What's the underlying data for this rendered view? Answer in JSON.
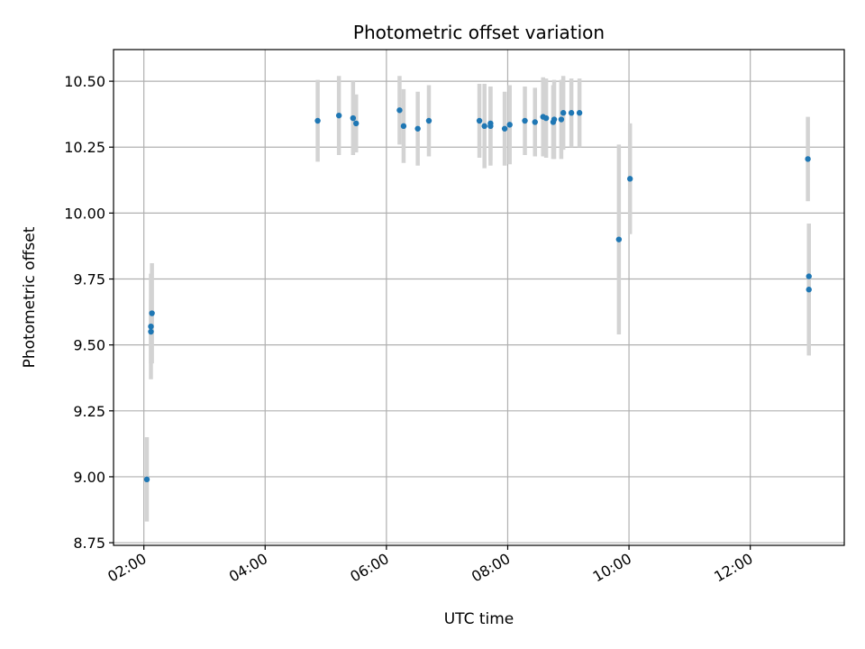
{
  "chart_data": {
    "type": "scatter",
    "title": "Photometric offset variation",
    "xlabel": "UTC time",
    "ylabel": "Photometric offset",
    "grid": true,
    "x_ticks": [
      "02:00",
      "04:00",
      "06:00",
      "08:00",
      "10:00",
      "12:00"
    ],
    "x_tick_hours": [
      2,
      4,
      6,
      8,
      10,
      12
    ],
    "xlim": [
      "01:30",
      "13:33"
    ],
    "xlim_hours": [
      1.5,
      13.55
    ],
    "ylim": [
      8.74,
      10.62
    ],
    "y_ticks": [
      "8.75",
      "9.00",
      "9.25",
      "9.50",
      "9.75",
      "10.00",
      "10.25",
      "10.50"
    ],
    "y_tick_values": [
      8.75,
      9.0,
      9.25,
      9.5,
      9.75,
      10.0,
      10.25,
      10.5
    ],
    "colors": {
      "marker": "#1f77b4",
      "errorbar": "#d3d3d3",
      "grid": "#b0b0b0"
    },
    "points": [
      {
        "time": "02:03",
        "y": 8.99,
        "err": 0.16
      },
      {
        "time": "02:07",
        "y": 9.55,
        "err": 0.12
      },
      {
        "time": "02:07",
        "y": 9.57,
        "err": 0.2
      },
      {
        "time": "02:08",
        "y": 9.62,
        "err": 0.19
      },
      {
        "time": "04:52",
        "y": 10.35,
        "err": 0.155
      },
      {
        "time": "05:13",
        "y": 10.37,
        "err": 0.15
      },
      {
        "time": "05:27",
        "y": 10.36,
        "err": 0.14
      },
      {
        "time": "05:30",
        "y": 10.34,
        "err": 0.11
      },
      {
        "time": "06:13",
        "y": 10.39,
        "err": 0.13
      },
      {
        "time": "06:17",
        "y": 10.33,
        "err": 0.14
      },
      {
        "time": "06:31",
        "y": 10.32,
        "err": 0.14
      },
      {
        "time": "06:42",
        "y": 10.35,
        "err": 0.135
      },
      {
        "time": "07:32",
        "y": 10.35,
        "err": 0.14
      },
      {
        "time": "07:37",
        "y": 10.33,
        "err": 0.16
      },
      {
        "time": "07:43",
        "y": 10.33,
        "err": 0.15
      },
      {
        "time": "07:43",
        "y": 10.34,
        "err": 0.14
      },
      {
        "time": "07:57",
        "y": 10.32,
        "err": 0.14
      },
      {
        "time": "08:02",
        "y": 10.335,
        "err": 0.15
      },
      {
        "time": "08:17",
        "y": 10.35,
        "err": 0.13
      },
      {
        "time": "08:27",
        "y": 10.345,
        "err": 0.13
      },
      {
        "time": "08:35",
        "y": 10.365,
        "err": 0.15
      },
      {
        "time": "08:38",
        "y": 10.36,
        "err": 0.15
      },
      {
        "time": "08:45",
        "y": 10.345,
        "err": 0.14
      },
      {
        "time": "08:46",
        "y": 10.355,
        "err": 0.15
      },
      {
        "time": "08:53",
        "y": 10.355,
        "err": 0.15
      },
      {
        "time": "08:55",
        "y": 10.38,
        "err": 0.14
      },
      {
        "time": "09:03",
        "y": 10.38,
        "err": 0.13
      },
      {
        "time": "09:11",
        "y": 10.38,
        "err": 0.13
      },
      {
        "time": "09:50",
        "y": 9.9,
        "err": 0.36
      },
      {
        "time": "10:01",
        "y": 10.13,
        "err": 0.21
      },
      {
        "time": "12:57",
        "y": 10.205,
        "err": 0.16
      },
      {
        "time": "12:58",
        "y": 9.76,
        "err": 0.2
      },
      {
        "time": "12:58",
        "y": 9.71,
        "err": 0.25
      }
    ]
  }
}
